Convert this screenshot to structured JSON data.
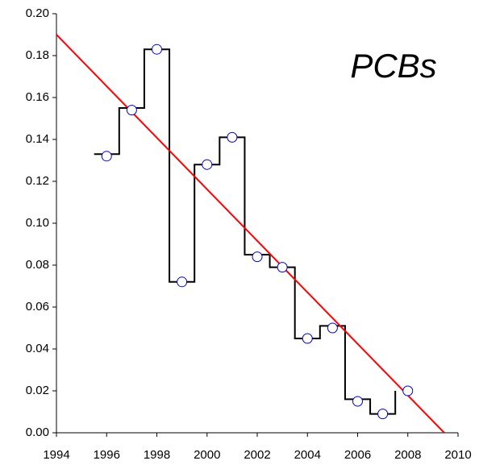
{
  "chart_data": {
    "type": "line",
    "annotation": "PCBs",
    "annotation_color": "#8b0000",
    "xlim": [
      1994,
      2010
    ],
    "xticks": [
      1994,
      1996,
      1998,
      2000,
      2002,
      2004,
      2006,
      2008,
      2010
    ],
    "ylim": [
      0,
      0.2
    ],
    "yticks": [
      {
        "value": 0,
        "label": "0.00"
      },
      {
        "value": 0.02,
        "label": "0.02"
      },
      {
        "value": 0.04,
        "label": "0.04"
      },
      {
        "value": 0.06,
        "label": "0.06"
      },
      {
        "value": 0.08,
        "label": "0.08"
      },
      {
        "value": 0.1,
        "label": "0.10"
      },
      {
        "value": 0.12,
        "label": "0.12"
      },
      {
        "value": 0.14,
        "label": "0.14"
      },
      {
        "value": 0.16,
        "label": "0.16"
      },
      {
        "value": 0.18,
        "label": "0.18"
      },
      {
        "value": 0.2,
        "label": "0.20"
      }
    ],
    "series": [
      {
        "type": "step",
        "color": "#000000",
        "x": [
          1995.5,
          1996.5,
          1997.5,
          1998.5,
          1999.5,
          2000.5,
          2001.5,
          2002.5,
          2003.5,
          2004.5,
          2005.5,
          2006.5,
          2007.5
        ],
        "values": [
          0.133,
          0.155,
          0.183,
          0.072,
          0.128,
          0.141,
          0.085,
          0.079,
          0.045,
          0.051,
          0.016,
          0.009,
          0.02
        ]
      },
      {
        "type": "line",
        "color": "#ff0000",
        "x": [
          1994,
          2009.45
        ],
        "values": [
          0.19,
          0
        ]
      },
      {
        "type": "scatter",
        "color": "#0000cc",
        "x": [
          1996,
          1997,
          1998,
          1999,
          2000,
          2001,
          2002,
          2003,
          2004,
          2005,
          2006,
          2007,
          2008
        ],
        "values": [
          0.132,
          0.154,
          0.183,
          0.072,
          0.128,
          0.141,
          0.084,
          0.079,
          0.045,
          0.05,
          0.015,
          0.009,
          0.02
        ]
      }
    ]
  }
}
